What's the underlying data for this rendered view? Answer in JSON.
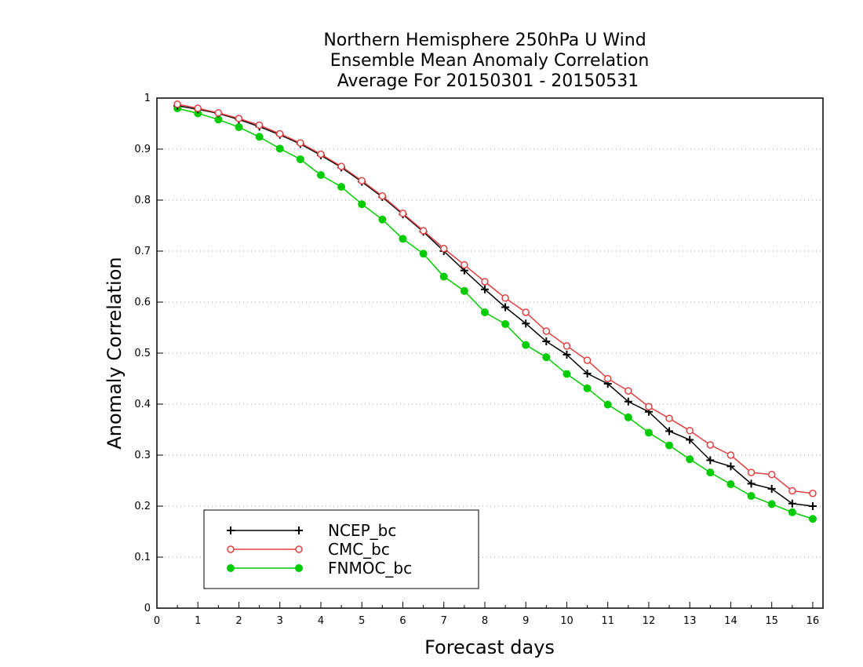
{
  "chart_data": {
    "type": "line",
    "title": [
      "Northern Hemisphere 250hPa U Wind",
      "Ensemble Mean Anomaly Correlation",
      "Average For 20150301 - 20150531"
    ],
    "xlabel": "Forecast days",
    "ylabel": "Anomaly Correlation",
    "xlim": [
      0,
      16.25
    ],
    "ylim": [
      0,
      1
    ],
    "xticks": [
      "0",
      "1",
      "2",
      "3",
      "4",
      "5",
      "6",
      "7",
      "8",
      "9",
      "10",
      "11",
      "12",
      "13",
      "14",
      "15",
      "16"
    ],
    "yticks": [
      "0",
      "0.1",
      "0.2",
      "0.3",
      "0.4",
      "0.5",
      "0.6",
      "0.7",
      "0.8",
      "0.9",
      "1"
    ],
    "grid": true,
    "legend_position": "bottom-left",
    "x": [
      0.5,
      1,
      1.5,
      2,
      2.5,
      3,
      3.5,
      4,
      4.5,
      5,
      5.5,
      6,
      6.5,
      7,
      7.5,
      8,
      8.5,
      9,
      9.5,
      10,
      10.5,
      11,
      11.5,
      12,
      12.5,
      13,
      13.5,
      14,
      14.5,
      15,
      15.5,
      16
    ],
    "series": [
      {
        "name": "NCEP_bc",
        "color": "#000000",
        "marker": "plus",
        "values": [
          0.985,
          0.978,
          0.97,
          0.958,
          0.944,
          0.928,
          0.91,
          0.888,
          0.864,
          0.836,
          0.806,
          0.772,
          0.738,
          0.7,
          0.662,
          0.625,
          0.59,
          0.558,
          0.523,
          0.497,
          0.46,
          0.44,
          0.405,
          0.385,
          0.347,
          0.33,
          0.29,
          0.278,
          0.244,
          0.234,
          0.205,
          0.2
        ]
      },
      {
        "name": "CMC_bc",
        "color": "#e04040",
        "marker": "open-circle",
        "values": [
          0.988,
          0.98,
          0.971,
          0.96,
          0.947,
          0.93,
          0.912,
          0.89,
          0.866,
          0.838,
          0.808,
          0.774,
          0.74,
          0.705,
          0.673,
          0.64,
          0.608,
          0.58,
          0.543,
          0.514,
          0.486,
          0.45,
          0.426,
          0.395,
          0.372,
          0.348,
          0.32,
          0.3,
          0.266,
          0.262,
          0.23,
          0.225
        ]
      },
      {
        "name": "FNMOC_bc",
        "color": "#00cc00",
        "marker": "filled-circle",
        "values": [
          0.98,
          0.97,
          0.958,
          0.943,
          0.924,
          0.901,
          0.88,
          0.849,
          0.826,
          0.792,
          0.762,
          0.724,
          0.695,
          0.65,
          0.622,
          0.58,
          0.557,
          0.516,
          0.492,
          0.459,
          0.431,
          0.399,
          0.374,
          0.344,
          0.319,
          0.292,
          0.266,
          0.243,
          0.22,
          0.204,
          0.188,
          0.175
        ]
      }
    ]
  }
}
